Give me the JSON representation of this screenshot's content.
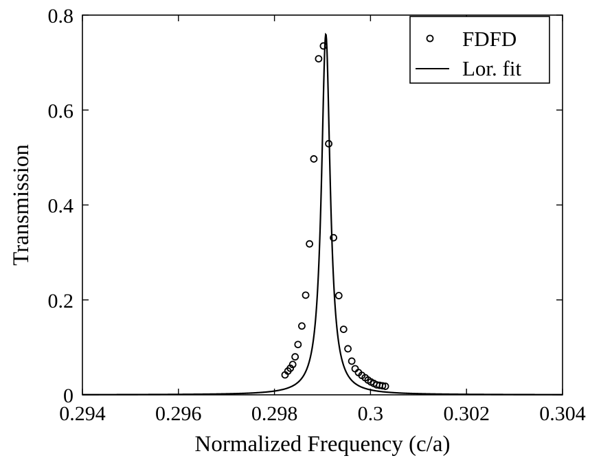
{
  "chart_data": {
    "type": "scatter",
    "title": "",
    "xlabel": "Normalized Frequency (c/a)",
    "ylabel": "Transmission",
    "xlim": [
      0.294,
      0.304
    ],
    "ylim": [
      0,
      0.8
    ],
    "xticks": [
      0.294,
      0.296,
      0.298,
      0.3,
      0.302,
      0.304
    ],
    "xtick_labels": [
      "0.294",
      "0.296",
      "0.298",
      "0.3",
      "0.302",
      "0.304"
    ],
    "yticks": [
      0,
      0.2,
      0.4,
      0.6,
      0.8
    ],
    "ytick_labels": [
      "0",
      "0.2",
      "0.4",
      "0.6",
      "0.8"
    ],
    "grid": false,
    "legend": {
      "position": "top-right",
      "entries": [
        "FDFD",
        "Lor. fit"
      ]
    },
    "series": [
      {
        "name": "FDFD",
        "style": "open-circle-markers",
        "x": [
          0.29822,
          0.29828,
          0.29833,
          0.29838,
          0.29843,
          0.29849,
          0.29857,
          0.29865,
          0.29873,
          0.29882,
          0.29892,
          0.29902,
          0.29913,
          0.29923,
          0.29934,
          0.29944,
          0.29953,
          0.29961,
          0.29968,
          0.29975,
          0.29982,
          0.29989,
          0.29995,
          0.30001,
          0.30007,
          0.30013,
          0.30019,
          0.30025,
          0.30031
        ],
        "y": [
          0.042,
          0.05,
          0.056,
          0.064,
          0.08,
          0.106,
          0.145,
          0.21,
          0.318,
          0.497,
          0.708,
          0.735,
          0.529,
          0.331,
          0.209,
          0.138,
          0.097,
          0.071,
          0.055,
          0.047,
          0.041,
          0.036,
          0.031,
          0.027,
          0.024,
          0.021,
          0.02,
          0.019,
          0.018
        ]
      },
      {
        "name": "Lor. fit",
        "style": "solid-line",
        "model": "lorentzian",
        "peak_x": 0.29907,
        "peak_y": 0.76,
        "half_width": 0.00011,
        "x_range": [
          0.294,
          0.304
        ]
      }
    ]
  }
}
